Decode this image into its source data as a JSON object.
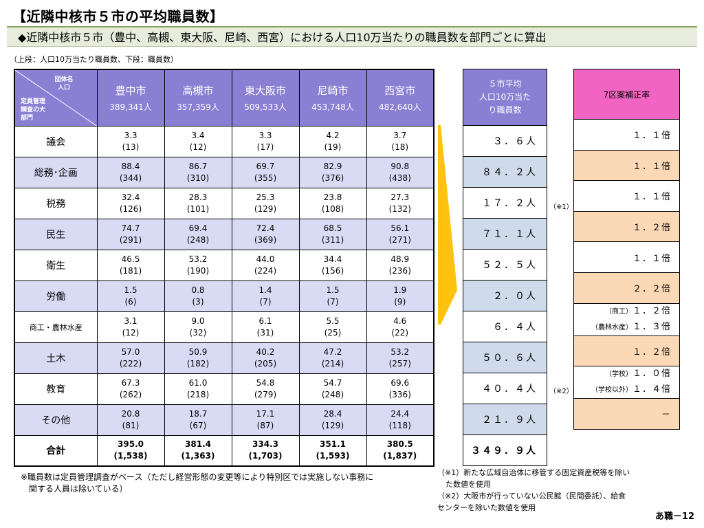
{
  "title": "【近隣中核市５市の平均職員数】",
  "banner": "◆近隣中核市５市（豊中、高槻、東大阪、尼崎、西宮）における人口10万当たりの職員数を部門ごとに算出",
  "note_top": "（上段：人口10万当たり職員数、下段：職員数）",
  "corner": {
    "top_line1": "団体名",
    "top_line2": "人口",
    "bottom_line1": "定員管理",
    "bottom_line2": "調査の大",
    "bottom_line3": "部門"
  },
  "cities": [
    {
      "name": "豊中市",
      "pop": "389,341人"
    },
    {
      "name": "高槻市",
      "pop": "357,359人"
    },
    {
      "name": "東大阪市",
      "pop": "509,533人"
    },
    {
      "name": "尼崎市",
      "pop": "453,748人"
    },
    {
      "name": "西宮市",
      "pop": "482,640人"
    }
  ],
  "rows": [
    {
      "label": "議会",
      "vals": [
        "3.3",
        "3.4",
        "3.3",
        "4.2",
        "3.7"
      ],
      "counts": [
        "(13)",
        "(12)",
        "(17)",
        "(19)",
        "(18)"
      ]
    },
    {
      "label": "総務･企画",
      "vals": [
        "88.4",
        "86.7",
        "69.7",
        "82.9",
        "90.8"
      ],
      "counts": [
        "(344)",
        "(310)",
        "(355)",
        "(376)",
        "(438)"
      ]
    },
    {
      "label": "税務",
      "vals": [
        "32.4",
        "28.3",
        "25.3",
        "23.8",
        "27.3"
      ],
      "counts": [
        "(126)",
        "(101)",
        "(129)",
        "(108)",
        "(132)"
      ]
    },
    {
      "label": "民生",
      "vals": [
        "74.7",
        "69.4",
        "72.4",
        "68.5",
        "56.1"
      ],
      "counts": [
        "(291)",
        "(248)",
        "(369)",
        "(311)",
        "(271)"
      ]
    },
    {
      "label": "衛生",
      "vals": [
        "46.5",
        "53.2",
        "44.0",
        "34.4",
        "48.9"
      ],
      "counts": [
        "(181)",
        "(190)",
        "(224)",
        "(156)",
        "(236)"
      ]
    },
    {
      "label": "労働",
      "vals": [
        "1.5",
        "0.8",
        "1.4",
        "1.5",
        "1.9"
      ],
      "counts": [
        "(6)",
        "(3)",
        "(7)",
        "(7)",
        "(9)"
      ]
    },
    {
      "label": "商工・農林水産",
      "vals": [
        "3.1",
        "9.0",
        "6.1",
        "5.5",
        "4.6"
      ],
      "counts": [
        "(12)",
        "(32)",
        "(31)",
        "(25)",
        "(22)"
      ]
    },
    {
      "label": "土木",
      "vals": [
        "57.0",
        "50.9",
        "40.2",
        "47.2",
        "53.2"
      ],
      "counts": [
        "(222)",
        "(182)",
        "(205)",
        "(214)",
        "(257)"
      ]
    },
    {
      "label": "教育",
      "vals": [
        "67.3",
        "61.0",
        "54.8",
        "54.7",
        "69.6"
      ],
      "counts": [
        "(262)",
        "(218)",
        "(279)",
        "(248)",
        "(336)"
      ]
    },
    {
      "label": "その他",
      "vals": [
        "20.8",
        "18.7",
        "17.1",
        "28.4",
        "24.4"
      ],
      "counts": [
        "(81)",
        "(67)",
        "(87)",
        "(129)",
        "(118)"
      ]
    }
  ],
  "total": {
    "label": "合計",
    "vals": [
      "395.0",
      "381.4",
      "334.3",
      "351.1",
      "380.5"
    ],
    "counts": [
      "(1,538)",
      "(1,363)",
      "(1,703)",
      "(1,593)",
      "(1,837)"
    ]
  },
  "avg": {
    "header_line1": "５市平均",
    "header_line2": "人口10万当た",
    "header_line3": "り職員数",
    "values": [
      "３．６人",
      "８４．２人",
      "１７．２人",
      "７１．１人",
      "５２．５人",
      "２．０人",
      "６．４人",
      "５０．６人",
      "４０．４人",
      "２１．９人"
    ],
    "total": "３４９．９人"
  },
  "refs": {
    "r1": "（※1）",
    "r2": "（※2）"
  },
  "rate": {
    "header": "7区案補正率",
    "values": [
      "１．１倍",
      "１．１倍",
      "１．１倍",
      "１．２倍",
      "１．１倍",
      "２．２倍"
    ],
    "shoko_sub1": "（商工）",
    "shoko_val1": "１．２倍",
    "shoko_sub2": "（農林水産）",
    "shoko_val2": "１．３倍",
    "doboku": "１．２倍",
    "kyoiku_sub1": "（学校）",
    "kyoiku_val1": "１．０倍",
    "kyoiku_sub2": "（学校以外）",
    "kyoiku_val2": "１．４倍",
    "sonota": "－"
  },
  "foot_left_1": "※職員数は定員管理調査がベース（ただし経営形態の変更等により特別区では実施しない事務に",
  "foot_left_2": "関する人員は除いている）",
  "foot_right_1": "（※1）新たな広域自治体に移管する固定資産税等を除い",
  "foot_right_2": "た数値を使用",
  "foot_right_3": "（※2）大阪市が行っていない公民館（民間委託）、給食",
  "foot_right_4": "センターを除いた数値を使用",
  "page_num": "あ職－12",
  "colors": {
    "header_purple": "#8b7fd4",
    "row_lavender": "#d9dbf5",
    "avg_blue": "#cfdaea",
    "rate_pink": "#f264c2",
    "rate_peach": "#fbd9b6",
    "arrow_yellow": "#ffc20e"
  }
}
